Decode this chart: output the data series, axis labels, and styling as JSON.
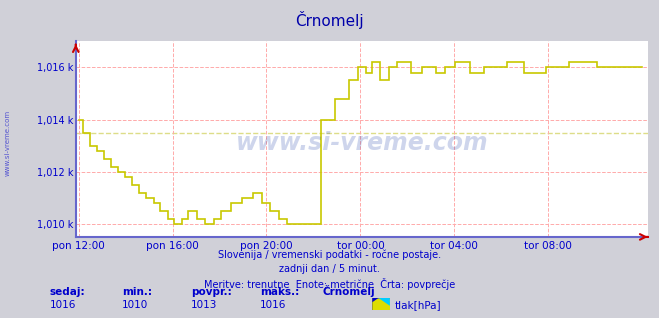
{
  "title": "Črnomelj",
  "background_color": "#d0d0d8",
  "plot_bg_color": "#ffffff",
  "line_color": "#c8c800",
  "grid_color_red": "#ffaaaa",
  "grid_color_yellow": "#dddd88",
  "axis_color_blue": "#6666cc",
  "title_color": "#0000aa",
  "label_color": "#0000cc",
  "watermark": "www.si-vreme.com",
  "watermark_color": "#2244aa",
  "footer_line1": "Slovenija / vremenski podatki - ročne postaje.",
  "footer_line2": "zadnji dan / 5 minut.",
  "footer_line3": "Meritve: trenutne  Enote: metrične  Črta: povprečje",
  "stats_label1": "sedaj:",
  "stats_label2": "min.:",
  "stats_label3": "povpr.:",
  "stats_label4": "maks.:",
  "stats_label5": "Črnomelj",
  "stats_val1": "1016",
  "stats_val2": "1010",
  "stats_val3": "1013",
  "stats_val4": "1016",
  "legend_label": "tlak[hPa]",
  "ylim_min": 1009.5,
  "ylim_max": 1017.0,
  "yticks": [
    1010,
    1012,
    1014,
    1016
  ],
  "ytick_labels": [
    "1,010 k",
    "1,012 k",
    "1,014 k",
    "1,016 k"
  ],
  "xtick_labels": [
    "pon 12:00",
    "pon 16:00",
    "pon 20:00",
    "tor 00:00",
    "tor 04:00",
    "tor 08:00"
  ],
  "xtick_positions": [
    0.0,
    0.1667,
    0.3333,
    0.5,
    0.6667,
    0.8333
  ],
  "avg_line_y": 1013.5,
  "data_x": [
    0.0,
    0.008,
    0.008,
    0.02,
    0.02,
    0.033,
    0.033,
    0.045,
    0.045,
    0.058,
    0.058,
    0.07,
    0.07,
    0.083,
    0.083,
    0.095,
    0.095,
    0.108,
    0.108,
    0.12,
    0.12,
    0.133,
    0.133,
    0.145,
    0.145,
    0.158,
    0.158,
    0.17,
    0.17,
    0.183,
    0.183,
    0.195,
    0.195,
    0.21,
    0.21,
    0.225,
    0.225,
    0.24,
    0.24,
    0.253,
    0.253,
    0.27,
    0.27,
    0.29,
    0.29,
    0.31,
    0.31,
    0.325,
    0.325,
    0.34,
    0.34,
    0.355,
    0.355,
    0.37,
    0.37,
    0.43,
    0.43,
    0.455,
    0.455,
    0.48,
    0.48,
    0.495,
    0.495,
    0.51,
    0.51,
    0.52,
    0.52,
    0.535,
    0.535,
    0.55,
    0.55,
    0.565,
    0.565,
    0.59,
    0.59,
    0.61,
    0.61,
    0.635,
    0.635,
    0.65,
    0.65,
    0.668,
    0.668,
    0.695,
    0.695,
    0.72,
    0.72,
    0.76,
    0.76,
    0.79,
    0.79,
    0.83,
    0.83,
    0.87,
    0.87,
    0.92,
    0.92,
    1.0
  ],
  "data_y": [
    1014.0,
    1014.0,
    1013.5,
    1013.5,
    1013.0,
    1013.0,
    1012.8,
    1012.8,
    1012.5,
    1012.5,
    1012.2,
    1012.2,
    1012.0,
    1012.0,
    1011.8,
    1011.8,
    1011.5,
    1011.5,
    1011.2,
    1011.2,
    1011.0,
    1011.0,
    1010.8,
    1010.8,
    1010.5,
    1010.5,
    1010.2,
    1010.2,
    1010.0,
    1010.0,
    1010.2,
    1010.2,
    1010.5,
    1010.5,
    1010.2,
    1010.2,
    1010.0,
    1010.0,
    1010.2,
    1010.2,
    1010.5,
    1010.5,
    1010.8,
    1010.8,
    1011.0,
    1011.0,
    1011.2,
    1011.2,
    1010.8,
    1010.8,
    1010.5,
    1010.5,
    1010.2,
    1010.2,
    1010.0,
    1010.0,
    1014.0,
    1014.0,
    1014.8,
    1014.8,
    1015.5,
    1015.5,
    1016.0,
    1016.0,
    1015.8,
    1015.8,
    1016.2,
    1016.2,
    1015.5,
    1015.5,
    1016.0,
    1016.0,
    1016.2,
    1016.2,
    1015.8,
    1015.8,
    1016.0,
    1016.0,
    1015.8,
    1015.8,
    1016.0,
    1016.0,
    1016.2,
    1016.2,
    1015.8,
    1015.8,
    1016.0,
    1016.0,
    1016.2,
    1016.2,
    1015.8,
    1015.8,
    1016.0,
    1016.0,
    1016.2,
    1016.2,
    1016.0,
    1016.0
  ]
}
